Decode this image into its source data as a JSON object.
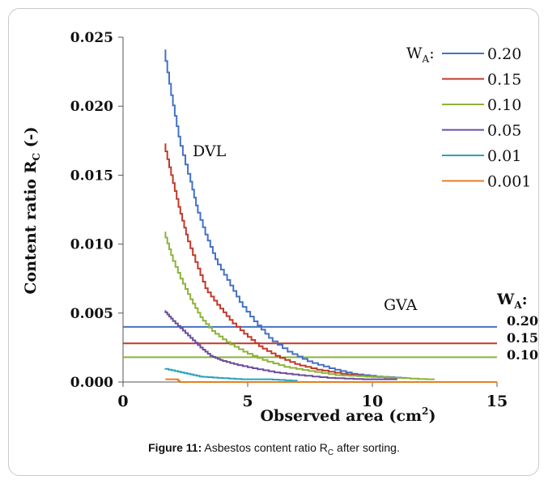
{
  "caption": {
    "label": "Figure 11:",
    "text_before_sub": "Asbestos content ratio R",
    "sub": "C",
    "text_after_sub": " after sorting."
  },
  "chart_data": {
    "type": "line",
    "xlabel": "Observed area (cm",
    "xlabel_sup": "2",
    "xlabel_end": ")",
    "ylabel": "Content ratio R",
    "ylabel_sub": "C",
    "ylabel_end": " (-)",
    "xlim": [
      0,
      15
    ],
    "ylim": [
      0,
      0.025
    ],
    "x_ticks": [
      "0",
      "5",
      "10",
      "15"
    ],
    "y_ticks": [
      "0.000",
      "0.005",
      "0.010",
      "0.015",
      "0.020",
      "0.025"
    ],
    "grid": false,
    "legend_title": "W",
    "legend_title_sub": "A",
    "legend_title_suffix": ":",
    "annotation_dvl": "DVL",
    "annotation_gva": "GVA",
    "gva_label_title": "W",
    "gva_label_sub": "A",
    "gva_label_suffix": ":",
    "series": [
      {
        "name": "0.20",
        "color": "#4472c4",
        "x": [
          1.7,
          2.0,
          2.3,
          2.7,
          3.0,
          3.4,
          3.8,
          4.3,
          4.8,
          5.4,
          6.0,
          6.8,
          7.6,
          8.5,
          9.4,
          10.4,
          11.4
        ],
        "y": [
          0.0241,
          0.0208,
          0.0178,
          0.0151,
          0.0128,
          0.0107,
          0.0089,
          0.0074,
          0.0058,
          0.0044,
          0.0032,
          0.0022,
          0.0015,
          0.001,
          0.0006,
          0.0004,
          0.0003
        ]
      },
      {
        "name": "0.15",
        "color": "#c0392b",
        "x": [
          1.7,
          2.0,
          2.3,
          2.6,
          3.0,
          3.4,
          3.9,
          4.4,
          5.0,
          5.6,
          6.3,
          7.1,
          8.0,
          9.0,
          10.0,
          11.0
        ],
        "y": [
          0.0173,
          0.015,
          0.0127,
          0.0107,
          0.0087,
          0.0068,
          0.0056,
          0.0045,
          0.0035,
          0.0026,
          0.0019,
          0.0013,
          0.0009,
          0.0006,
          0.0004,
          0.0003
        ]
      },
      {
        "name": "0.10",
        "color": "#8db33a",
        "x": [
          1.7,
          2.0,
          2.4,
          2.8,
          3.2,
          3.7,
          4.3,
          5.0,
          5.8,
          6.7,
          7.7,
          8.8,
          10.0,
          11.2,
          12.5
        ],
        "y": [
          0.0109,
          0.0092,
          0.0075,
          0.006,
          0.0047,
          0.0037,
          0.0029,
          0.0022,
          0.0016,
          0.0011,
          0.0008,
          0.0005,
          0.0004,
          0.0003,
          0.0002
        ]
      },
      {
        "name": "0.05",
        "color": "#6a4c9c",
        "x": [
          1.7,
          2.0,
          2.4,
          2.8,
          3.2,
          3.6,
          4.0,
          4.6,
          5.4,
          6.3,
          7.3,
          8.5,
          10.0,
          11.0
        ],
        "y": [
          0.0052,
          0.0046,
          0.0039,
          0.0032,
          0.0025,
          0.0019,
          0.0016,
          0.0013,
          0.001,
          0.0007,
          0.0005,
          0.0003,
          0.0002,
          0.0002
        ]
      },
      {
        "name": "0.01",
        "color": "#2aa3b8",
        "x": [
          1.7,
          2.2,
          2.7,
          3.2,
          4.0,
          5.0,
          6.0,
          7.0
        ],
        "y": [
          0.001,
          0.0008,
          0.0006,
          0.0004,
          0.0003,
          0.0002,
          0.0002,
          0.0001
        ]
      },
      {
        "name": "0.001",
        "color": "#e67e22",
        "x": [
          1.7,
          2.2,
          2.3,
          15.0
        ],
        "y": [
          0.0002,
          0.0002,
          0.0,
          0.0
        ]
      }
    ],
    "gva": [
      {
        "label": "0.20",
        "y": 0.004,
        "color": "#4472c4"
      },
      {
        "label": "0.15",
        "y": 0.0028,
        "color": "#c0392b"
      },
      {
        "label": "0.10",
        "y": 0.0018,
        "color": "#8db33a"
      }
    ]
  }
}
